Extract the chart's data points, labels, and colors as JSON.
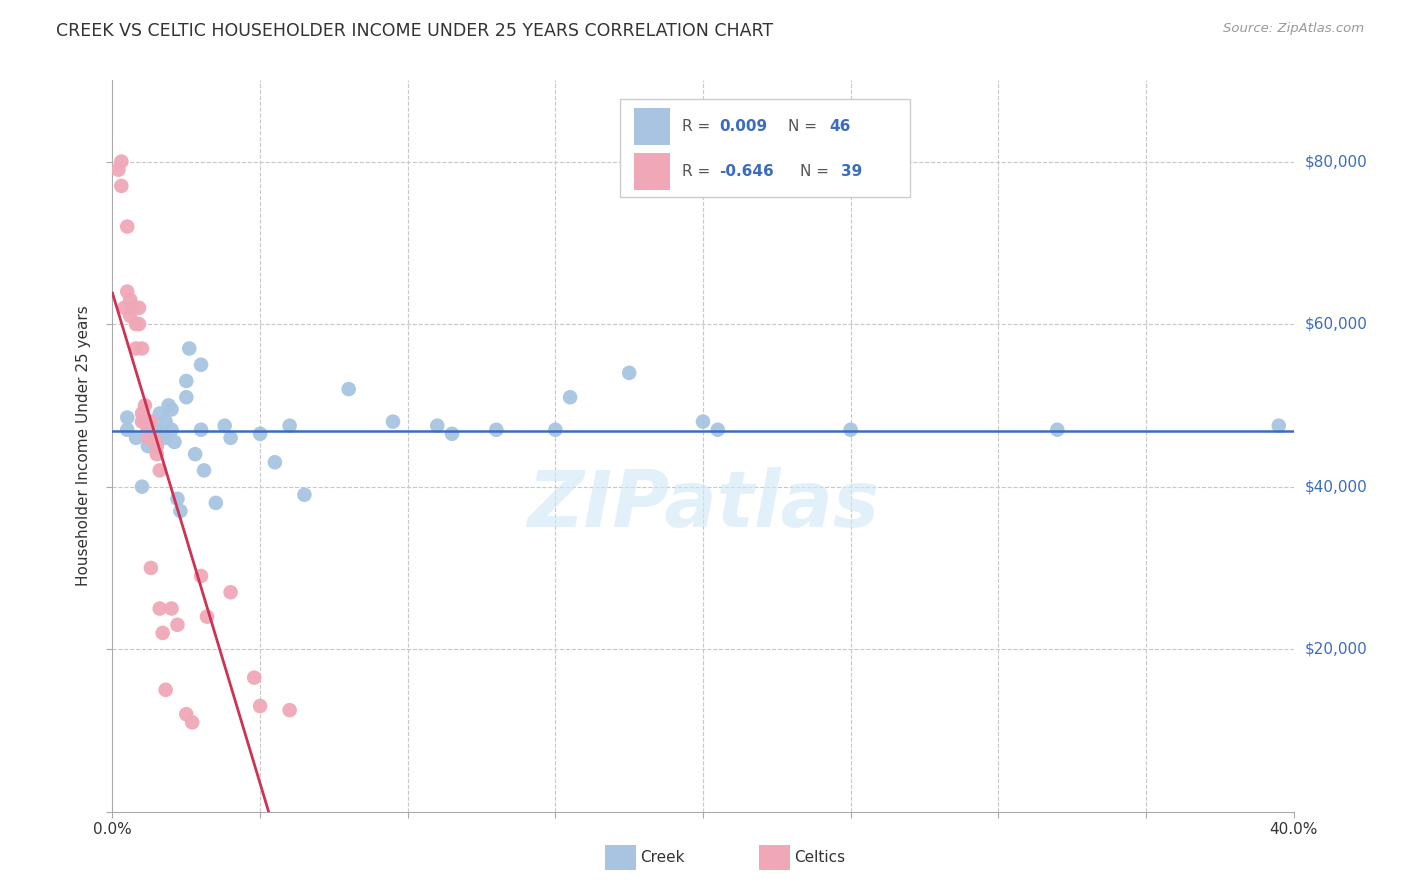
{
  "title": "CREEK VS CELTIC HOUSEHOLDER INCOME UNDER 25 YEARS CORRELATION CHART",
  "source": "Source: ZipAtlas.com",
  "ylabel": "Householder Income Under 25 years",
  "watermark": "ZIPatlas",
  "xlim": [
    0.0,
    0.4
  ],
  "ylim": [
    0,
    90000
  ],
  "background_color": "#ffffff",
  "grid_color": "#c8c8c8",
  "creek_color": "#a8c4e0",
  "celtics_color": "#f0a8b8",
  "creek_line_color": "#3a6dbf",
  "celtics_line_color": "#cc3355",
  "creek_R": "0.009",
  "creek_N": "46",
  "celtics_R": "-0.646",
  "celtics_N": "39",
  "creek_points_x": [
    0.005,
    0.005,
    0.008,
    0.01,
    0.012,
    0.012,
    0.013,
    0.015,
    0.015,
    0.016,
    0.017,
    0.018,
    0.018,
    0.019,
    0.02,
    0.02,
    0.021,
    0.022,
    0.023,
    0.025,
    0.025,
    0.026,
    0.028,
    0.03,
    0.03,
    0.031,
    0.035,
    0.038,
    0.04,
    0.05,
    0.055,
    0.06,
    0.065,
    0.08,
    0.095,
    0.11,
    0.115,
    0.13,
    0.15,
    0.155,
    0.175,
    0.2,
    0.205,
    0.25,
    0.32,
    0.395
  ],
  "creek_points_y": [
    48500,
    47000,
    46000,
    40000,
    45000,
    47000,
    48000,
    45000,
    47000,
    49000,
    46500,
    48000,
    46000,
    50000,
    47000,
    49500,
    45500,
    38500,
    37000,
    51000,
    53000,
    57000,
    44000,
    55000,
    47000,
    42000,
    38000,
    47500,
    46000,
    46500,
    43000,
    47500,
    39000,
    52000,
    48000,
    47500,
    46500,
    47000,
    47000,
    51000,
    54000,
    48000,
    47000,
    47000,
    47000,
    47500
  ],
  "celtics_points_x": [
    0.002,
    0.003,
    0.003,
    0.004,
    0.005,
    0.005,
    0.006,
    0.006,
    0.007,
    0.008,
    0.008,
    0.009,
    0.009,
    0.01,
    0.01,
    0.01,
    0.011,
    0.011,
    0.012,
    0.012,
    0.013,
    0.013,
    0.014,
    0.015,
    0.015,
    0.016,
    0.016,
    0.017,
    0.018,
    0.02,
    0.022,
    0.025,
    0.027,
    0.03,
    0.032,
    0.04,
    0.048,
    0.05,
    0.06
  ],
  "celtics_points_y": [
    79000,
    77000,
    80000,
    62000,
    72000,
    64000,
    61000,
    63000,
    62000,
    60000,
    57000,
    60000,
    62000,
    57000,
    49000,
    48000,
    50000,
    48000,
    47000,
    46000,
    48000,
    30000,
    46000,
    45000,
    44000,
    42000,
    25000,
    22000,
    15000,
    25000,
    23000,
    12000,
    11000,
    29000,
    24000,
    27000,
    16500,
    13000,
    12500
  ],
  "right_ytick_labels": [
    "$80,000",
    "$60,000",
    "$40,000",
    "$20,000"
  ],
  "right_ytick_values": [
    80000,
    60000,
    40000,
    20000
  ]
}
